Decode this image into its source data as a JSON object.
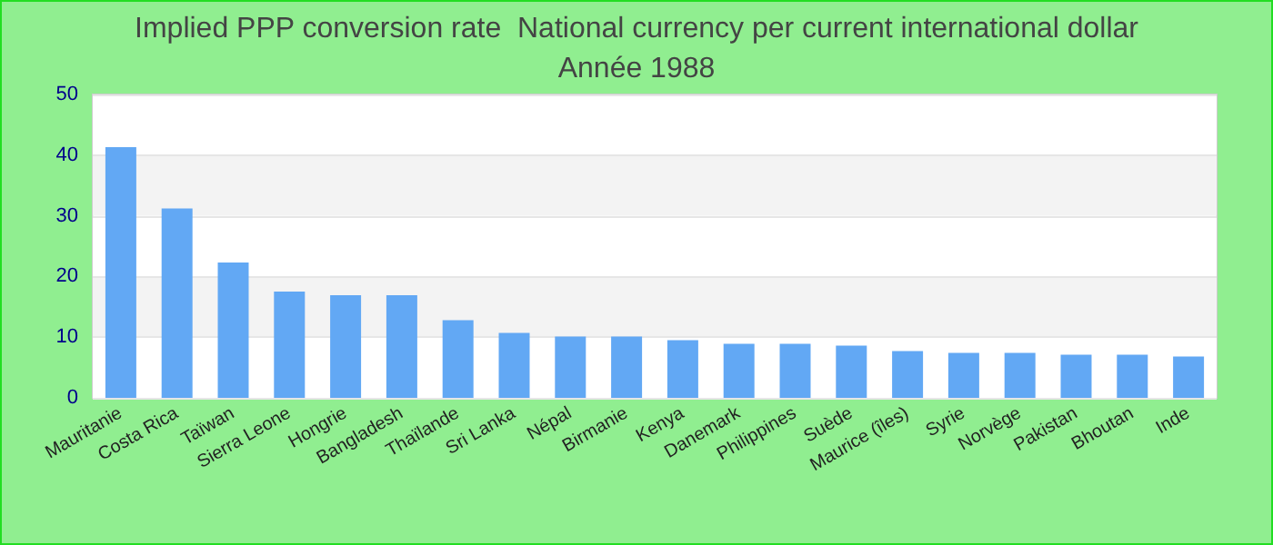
{
  "chart_data": {
    "type": "bar",
    "title": "Implied PPP conversion rate  National currency per current international dollar",
    "subtitle": "Année 1988",
    "categories": [
      "Mauritanie",
      "Costa Rica",
      "Taïwan",
      "Sierra Leone",
      "Hongrie",
      "Bangladesh",
      "Thaïlande",
      "Sri Lanka",
      "Népal",
      "Birmanie",
      "Kenya",
      "Danemark",
      "Philippines",
      "Suède",
      "Maurice (îles)",
      "Syrie",
      "Norvège",
      "Pakistan",
      "Bhoutan",
      "Inde"
    ],
    "values": [
      41.3,
      31.2,
      22.3,
      17.5,
      16.9,
      16.9,
      12.8,
      10.7,
      10.1,
      10.1,
      9.5,
      8.9,
      8.9,
      8.6,
      7.7,
      7.4,
      7.4,
      7.1,
      7.1,
      6.8
    ],
    "color": "#62a8f4",
    "ylim": [
      0,
      50
    ],
    "yticks": [
      0,
      10,
      20,
      30,
      40,
      50
    ],
    "grid": "y"
  }
}
